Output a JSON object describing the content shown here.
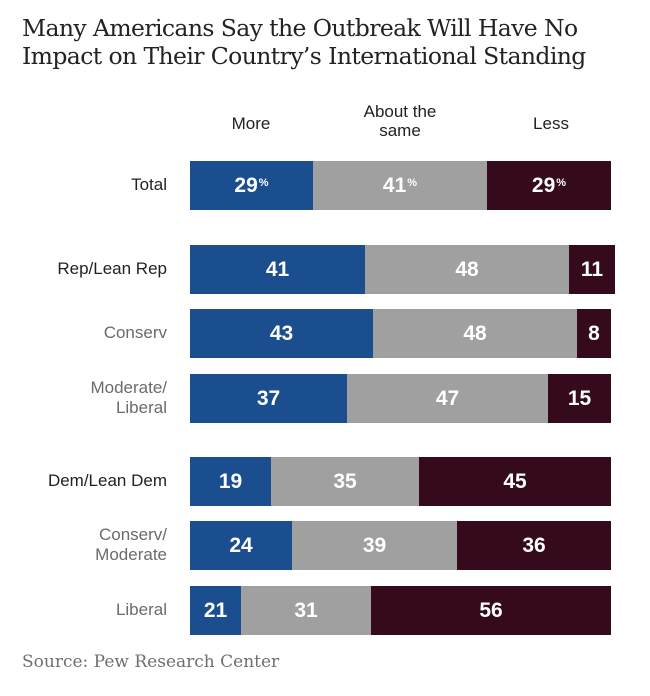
{
  "title_line1": "Many Americans Say the Outbreak Will Have No",
  "title_line2": "Impact on Their Country’s International Standing",
  "source": "Source: Pew Research Center",
  "colors": {
    "more": "#1a4e8e",
    "same": "#a0a0a0",
    "less": "#340a1c"
  },
  "chart_data": {
    "type": "bar",
    "orientation": "horizontal-stacked",
    "title": "Many Americans Say the Outbreak Will Have No Impact on Their Country’s International Standing",
    "legend": [
      "More",
      "About the same",
      "Less"
    ],
    "legend_placement": "top",
    "column_headers": {
      "more": "More",
      "same_line1": "About the",
      "same_line2": "same",
      "less": "Less"
    },
    "categories": [
      "Total",
      "Rep/Lean Rep",
      "Conserv",
      "Moderate/ Liberal",
      "Dem/Lean Dem",
      "Conserv/ Moderate",
      "Liberal"
    ],
    "rows": [
      {
        "label": "Total",
        "style": "main",
        "values": [
          29,
          41,
          29
        ],
        "percent_sign": true
      },
      {
        "label": "Rep/Lean Rep",
        "style": "main",
        "values": [
          41,
          48,
          11
        ]
      },
      {
        "label": "Conserv",
        "style": "sub",
        "values": [
          43,
          48,
          8
        ]
      },
      {
        "label_line1": "Moderate/",
        "label_line2": "Liberal",
        "style": "sub",
        "values": [
          37,
          47,
          15
        ]
      },
      {
        "label": "Dem/Lean Dem",
        "style": "main",
        "values": [
          19,
          35,
          45
        ]
      },
      {
        "label_line1": "Conserv/",
        "label_line2": "Moderate",
        "style": "sub",
        "values": [
          24,
          39,
          36
        ]
      },
      {
        "label": "Liberal",
        "style": "sub",
        "values": [
          21,
          31,
          56
        ]
      }
    ],
    "series": [
      {
        "name": "More",
        "values": [
          29,
          41,
          43,
          37,
          19,
          24,
          21
        ]
      },
      {
        "name": "About the same",
        "values": [
          41,
          48,
          48,
          47,
          35,
          39,
          31
        ]
      },
      {
        "name": "Less",
        "values": [
          29,
          11,
          8,
          15,
          45,
          36,
          56
        ]
      }
    ],
    "unit": "%",
    "xlabel": "",
    "ylabel": ""
  }
}
